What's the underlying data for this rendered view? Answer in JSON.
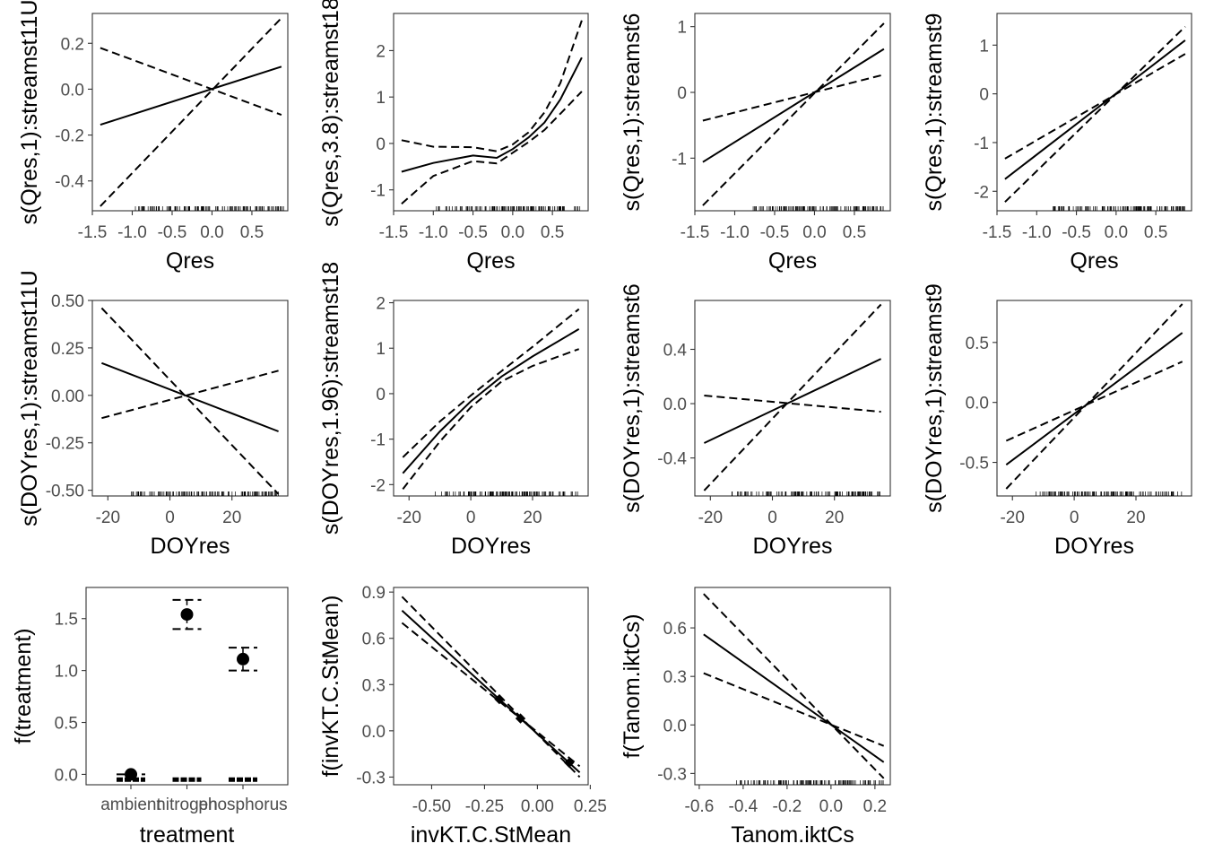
{
  "chart_data": [
    {
      "id": "p1",
      "type": "line",
      "xlabel": "Qres",
      "ylabel": "s(Qres,1):streamst11U",
      "xlim": [
        -1.5,
        0.95
      ],
      "ylim": [
        -0.53,
        0.33
      ],
      "xticks": [
        -1.5,
        -1.0,
        -0.5,
        0.0,
        0.5
      ],
      "xtick_labels": [
        "-1.5",
        "-1.0",
        "-0.5",
        "0.0",
        "0.5"
      ],
      "yticks": [
        0.2,
        0.0,
        -0.2,
        -0.4
      ],
      "ytick_labels": [
        "0.2",
        "0.0",
        "-0.2",
        "-0.4"
      ],
      "rug": [
        -1.3,
        0.9
      ],
      "series": [
        {
          "style": "solid",
          "x": [
            -1.4,
            0.87
          ],
          "y": [
            -0.155,
            0.098
          ]
        },
        {
          "style": "dashed",
          "x": [
            -1.4,
            0.87
          ],
          "y": [
            -0.51,
            0.31
          ]
        },
        {
          "style": "dashed",
          "x": [
            -1.4,
            0.87
          ],
          "y": [
            0.18,
            -0.112
          ]
        }
      ]
    },
    {
      "id": "p2",
      "type": "line",
      "xlabel": "Qres",
      "ylabel": "s(Qres,3.8):streamst18",
      "xlim": [
        -1.5,
        0.95
      ],
      "ylim": [
        -1.45,
        2.8
      ],
      "xticks": [
        -1.5,
        -1.0,
        -0.5,
        0.0,
        0.5
      ],
      "xtick_labels": [
        "-1.5",
        "-1.0",
        "-0.5",
        "0.0",
        "0.5"
      ],
      "yticks": [
        2,
        1,
        0,
        -1
      ],
      "ytick_labels": [
        "2",
        "1",
        "0",
        "-1"
      ],
      "rug": [
        -1.3,
        0.9
      ],
      "series": [
        {
          "style": "solid",
          "x": [
            -1.4,
            -1.0,
            -0.5,
            -0.2,
            0.0,
            0.2,
            0.4,
            0.6,
            0.87
          ],
          "y": [
            -0.61,
            -0.42,
            -0.26,
            -0.31,
            -0.12,
            0.13,
            0.45,
            0.95,
            1.85
          ]
        },
        {
          "style": "dashed",
          "x": [
            -1.4,
            -1.0,
            -0.5,
            -0.2,
            0.0,
            0.2,
            0.4,
            0.6,
            0.87
          ],
          "y": [
            -1.3,
            -0.7,
            -0.38,
            -0.43,
            -0.2,
            0.03,
            0.29,
            0.64,
            1.12
          ]
        },
        {
          "style": "dashed",
          "x": [
            -1.4,
            -1.0,
            -0.5,
            -0.2,
            0.0,
            0.2,
            0.4,
            0.6,
            0.87
          ],
          "y": [
            0.07,
            -0.07,
            -0.08,
            -0.17,
            -0.02,
            0.24,
            0.67,
            1.3,
            2.65
          ]
        }
      ]
    },
    {
      "id": "p3",
      "type": "line",
      "xlabel": "Qres",
      "ylabel": "s(Qres,1):streamst6",
      "xlim": [
        -1.5,
        0.95
      ],
      "ylim": [
        -1.8,
        1.2
      ],
      "xticks": [
        -1.5,
        -1.0,
        -0.5,
        0.0,
        0.5
      ],
      "xtick_labels": [
        "-1.5",
        "-1.0",
        "-0.5",
        "0.0",
        "0.5"
      ],
      "yticks": [
        1,
        0,
        -1
      ],
      "ytick_labels": [
        "1",
        "0",
        "-1"
      ],
      "rug": [
        -1.1,
        0.9
      ],
      "series": [
        {
          "style": "solid",
          "x": [
            -1.4,
            0.87
          ],
          "y": [
            -1.06,
            0.66
          ]
        },
        {
          "style": "dashed",
          "x": [
            -1.4,
            0.87
          ],
          "y": [
            -1.72,
            1.05
          ]
        },
        {
          "style": "dashed",
          "x": [
            -1.4,
            0.87
          ],
          "y": [
            -0.43,
            0.27
          ]
        }
      ]
    },
    {
      "id": "p4",
      "type": "line",
      "xlabel": "Qres",
      "ylabel": "s(Qres,1):streamst9",
      "xlim": [
        -1.5,
        0.95
      ],
      "ylim": [
        -2.4,
        1.65
      ],
      "xticks": [
        -1.5,
        -1.0,
        -0.5,
        0.0,
        0.5
      ],
      "xtick_labels": [
        "-1.5",
        "-1.0",
        "-0.5",
        "0.0",
        "0.5"
      ],
      "yticks": [
        1,
        0,
        -1,
        -2
      ],
      "ytick_labels": [
        "1",
        "0",
        "-1",
        "-2"
      ],
      "rug": [
        -1.1,
        0.9
      ],
      "series": [
        {
          "style": "solid",
          "x": [
            -1.4,
            0.87
          ],
          "y": [
            -1.75,
            1.1
          ]
        },
        {
          "style": "dashed",
          "x": [
            -1.4,
            0.87
          ],
          "y": [
            -2.22,
            1.38
          ]
        },
        {
          "style": "dashed",
          "x": [
            -1.4,
            0.87
          ],
          "y": [
            -1.33,
            0.82
          ]
        }
      ]
    },
    {
      "id": "p5",
      "type": "line",
      "xlabel": "DOYres",
      "ylabel": "s(DOYres,1):streamst11U",
      "xlim": [
        -25,
        38
      ],
      "ylim": [
        -0.53,
        0.5
      ],
      "xticks": [
        -20,
        0,
        20
      ],
      "xtick_labels": [
        "-20",
        "0",
        "20"
      ],
      "yticks": [
        0.5,
        0.25,
        0.0,
        -0.25,
        -0.5
      ],
      "ytick_labels": [
        "0.50",
        "0.25",
        "0.00",
        "-0.25",
        "-0.50"
      ],
      "rug": [
        -22,
        35
      ],
      "series": [
        {
          "style": "solid",
          "x": [
            -22,
            35
          ],
          "y": [
            0.17,
            -0.19
          ]
        },
        {
          "style": "dashed",
          "x": [
            -22,
            35
          ],
          "y": [
            0.46,
            -0.52
          ]
        },
        {
          "style": "dashed",
          "x": [
            -22,
            35
          ],
          "y": [
            -0.12,
            0.13
          ]
        }
      ]
    },
    {
      "id": "p6",
      "type": "line",
      "xlabel": "DOYres",
      "ylabel": "s(DOYres,1.96):streamst18",
      "xlim": [
        -25,
        38
      ],
      "ylim": [
        -2.25,
        2.05
      ],
      "xticks": [
        -20,
        0,
        20
      ],
      "xtick_labels": [
        "-20",
        "0",
        "20"
      ],
      "yticks": [
        2,
        1,
        0,
        -1,
        -2
      ],
      "ytick_labels": [
        "2",
        "1",
        "0",
        "-1",
        "-2"
      ],
      "rug": [
        -20,
        35
      ],
      "series": [
        {
          "style": "solid",
          "x": [
            -22,
            -10,
            0,
            10,
            20,
            35
          ],
          "y": [
            -1.75,
            -0.83,
            -0.17,
            0.38,
            0.82,
            1.42
          ]
        },
        {
          "style": "dashed",
          "x": [
            -22,
            -10,
            0,
            10,
            20,
            35
          ],
          "y": [
            -2.1,
            -1.05,
            -0.3,
            0.27,
            0.61,
            0.98
          ]
        },
        {
          "style": "dashed",
          "x": [
            -22,
            -10,
            0,
            10,
            20,
            35
          ],
          "y": [
            -1.4,
            -0.61,
            -0.04,
            0.5,
            1.03,
            1.86
          ]
        }
      ]
    },
    {
      "id": "p7",
      "type": "line",
      "xlabel": "DOYres",
      "ylabel": "s(DOYres,1):streamst6",
      "xlim": [
        -25,
        38
      ],
      "ylim": [
        -0.68,
        0.76
      ],
      "xticks": [
        -20,
        0,
        20
      ],
      "xtick_labels": [
        "-20",
        "0",
        "20"
      ],
      "yticks": [
        0.4,
        0.0,
        -0.4
      ],
      "ytick_labels": [
        "0.4",
        "0.0",
        "-0.4"
      ],
      "rug": [
        -22,
        35
      ],
      "series": [
        {
          "style": "solid",
          "x": [
            -22,
            35
          ],
          "y": [
            -0.29,
            0.33
          ]
        },
        {
          "style": "dashed",
          "x": [
            -22,
            35
          ],
          "y": [
            -0.64,
            0.73
          ]
        },
        {
          "style": "dashed",
          "x": [
            -22,
            35
          ],
          "y": [
            0.06,
            -0.06
          ]
        }
      ]
    },
    {
      "id": "p8",
      "type": "line",
      "xlabel": "DOYres",
      "ylabel": "s(DOYres,1):streamst9",
      "xlim": [
        -25,
        38
      ],
      "ylim": [
        -0.78,
        0.85
      ],
      "xticks": [
        -20,
        0,
        20
      ],
      "xtick_labels": [
        "-20",
        "0",
        "20"
      ],
      "yticks": [
        0.5,
        0.0,
        -0.5
      ],
      "ytick_labels": [
        "0.5",
        "0.0",
        "-0.5"
      ],
      "rug": [
        -22,
        35
      ],
      "series": [
        {
          "style": "solid",
          "x": [
            -22,
            35
          ],
          "y": [
            -0.52,
            0.58
          ]
        },
        {
          "style": "dashed",
          "x": [
            -22,
            35
          ],
          "y": [
            -0.72,
            0.82
          ]
        },
        {
          "style": "dashed",
          "x": [
            -22,
            35
          ],
          "y": [
            -0.32,
            0.34
          ]
        }
      ]
    },
    {
      "id": "p9",
      "type": "scatter",
      "subtype": "pointrange",
      "xlabel": "treatment",
      "ylabel": "f(treatment)",
      "categories": [
        "ambient",
        "nitrogen",
        "phosphorus"
      ],
      "ylim": [
        -0.1,
        1.8
      ],
      "yticks": [
        1.5,
        1.0,
        0.5,
        0.0
      ],
      "ytick_labels": [
        "1.5",
        "1.0",
        "0.5",
        "0.0"
      ],
      "values": [
        0.0,
        1.54,
        1.11
      ],
      "lower": [
        0.0,
        1.4,
        1.0
      ],
      "upper": [
        0.0,
        1.68,
        1.22
      ],
      "baseline": -0.05
    },
    {
      "id": "p10",
      "type": "line",
      "xlabel": "invKT.C.StMean",
      "ylabel": "f(invKT.C.StMean)",
      "xlim": [
        -0.68,
        0.24
      ],
      "ylim": [
        -0.35,
        0.93
      ],
      "xticks": [
        -0.5,
        -0.25,
        0.0,
        0.25
      ],
      "xtick_labels": [
        "-0.50",
        "-0.25",
        "0.00",
        "0.25"
      ],
      "yticks": [
        0.9,
        0.6,
        0.3,
        0.0,
        -0.3
      ],
      "ytick_labels": [
        "0.9",
        "0.6",
        "0.3",
        "0.0",
        "-0.3"
      ],
      "series": [
        {
          "style": "solid",
          "x": [
            -0.64,
            0.2
          ],
          "y": [
            0.78,
            -0.27
          ]
        },
        {
          "style": "dashed",
          "x": [
            -0.64,
            0.2
          ],
          "y": [
            0.87,
            -0.3
          ]
        },
        {
          "style": "dashed",
          "x": [
            -0.64,
            0.2
          ],
          "y": [
            0.7,
            -0.23
          ]
        }
      ],
      "markers_x": [
        -0.18,
        -0.08,
        0.15
      ]
    },
    {
      "id": "p11",
      "type": "line",
      "xlabel": "Tanom.iktCs",
      "ylabel": "f(Tanom.iktCs)",
      "xlim": [
        -0.62,
        0.27
      ],
      "ylim": [
        -0.37,
        0.85
      ],
      "xticks": [
        -0.6,
        -0.4,
        -0.2,
        0.0,
        0.2
      ],
      "xtick_labels": [
        "-0.6",
        "-0.4",
        "-0.2",
        "0.0",
        "0.2"
      ],
      "yticks": [
        0.6,
        0.3,
        0.0,
        -0.3
      ],
      "ytick_labels": [
        "0.6",
        "0.3",
        "0.0",
        "-0.3"
      ],
      "rug": [
        -0.55,
        0.24
      ],
      "series": [
        {
          "style": "solid",
          "x": [
            -0.58,
            0.24
          ],
          "y": [
            0.56,
            -0.23
          ]
        },
        {
          "style": "dashed",
          "x": [
            -0.58,
            0.24
          ],
          "y": [
            0.81,
            -0.33
          ]
        },
        {
          "style": "dashed",
          "x": [
            -0.58,
            0.24
          ],
          "y": [
            0.32,
            -0.13
          ]
        }
      ]
    }
  ]
}
